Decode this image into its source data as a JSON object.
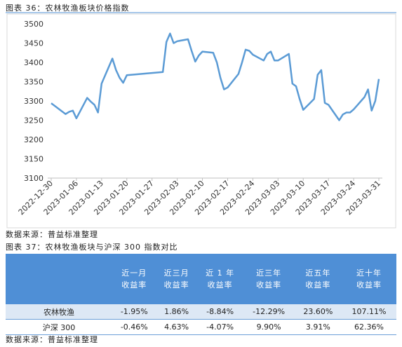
{
  "caption1": "图表 36：农林牧渔板块价格指数",
  "chart_data": {
    "type": "line",
    "x": [
      "2022-12-30",
      "2023-01-03",
      "2023-01-04",
      "2023-01-05",
      "2023-01-06",
      "2023-01-09",
      "2023-01-10",
      "2023-01-11",
      "2023-01-12",
      "2023-01-13",
      "2023-01-16",
      "2023-01-17",
      "2023-01-18",
      "2023-01-19",
      "2023-01-20",
      "2023-01-30",
      "2023-01-31",
      "2023-02-01",
      "2023-02-02",
      "2023-02-03",
      "2023-02-06",
      "2023-02-07",
      "2023-02-08",
      "2023-02-09",
      "2023-02-10",
      "2023-02-13",
      "2023-02-14",
      "2023-02-15",
      "2023-02-16",
      "2023-02-17",
      "2023-02-20",
      "2023-02-21",
      "2023-02-22",
      "2023-02-23",
      "2023-02-24",
      "2023-02-27",
      "2023-02-28",
      "2023-03-01",
      "2023-03-02",
      "2023-03-03",
      "2023-03-06",
      "2023-03-07",
      "2023-03-08",
      "2023-03-09",
      "2023-03-10",
      "2023-03-13",
      "2023-03-14",
      "2023-03-15",
      "2023-03-16",
      "2023-03-17",
      "2023-03-20",
      "2023-03-21",
      "2023-03-22",
      "2023-03-23",
      "2023-03-24",
      "2023-03-27",
      "2023-03-28",
      "2023-03-29",
      "2023-03-30",
      "2023-03-31"
    ],
    "series": [
      {
        "color": "#5b9bd5",
        "values": [
          3294,
          3266,
          3272,
          3275,
          3255,
          3308,
          3298,
          3290,
          3270,
          3345,
          3410,
          3380,
          3360,
          3347,
          3367,
          3375,
          3453,
          3475,
          3450,
          3455,
          3460,
          3430,
          3402,
          3418,
          3428,
          3425,
          3400,
          3360,
          3330,
          3335,
          3370,
          3400,
          3433,
          3430,
          3420,
          3405,
          3422,
          3428,
          3405,
          3405,
          3422,
          3345,
          3338,
          3305,
          3277,
          3305,
          3368,
          3380,
          3295,
          3290,
          3250,
          3265,
          3270,
          3270,
          3278,
          3310,
          3330,
          3275,
          3300,
          3357
        ]
      }
    ],
    "xlim": [
      "2022-12-30",
      "2023-03-31"
    ],
    "xticks": [
      "2022-12-30",
      "2023-01-06",
      "2023-01-13",
      "2023-01-20",
      "2023-01-27",
      "2023-02-03",
      "2023-02-10",
      "2023-02-17",
      "2023-02-24",
      "2023-03-03",
      "2023-03-10",
      "2023-03-17",
      "2023-03-24",
      "2023-03-31"
    ],
    "ylim": [
      3100,
      3500
    ],
    "yticks": [
      3100,
      3150,
      3200,
      3250,
      3300,
      3350,
      3400,
      3450,
      3500
    ],
    "grid": false
  },
  "source1": "数据来源：普益标准整理",
  "caption2": "图表 37：农林牧渔板块与沪深 300 指数对比",
  "table": {
    "header": [
      [
        "近一月",
        "收益率"
      ],
      [
        "近三月",
        "收益率"
      ],
      [
        "近 1 年",
        "收益率"
      ],
      [
        "近三年",
        "收益率"
      ],
      [
        "近五年",
        "收益率"
      ],
      [
        "近十年",
        "收益率"
      ]
    ],
    "rows": [
      [
        "农林牧渔",
        "-1.95%",
        "1.86%",
        "-8.84%",
        "-12.29%",
        "23.60%",
        "107.11%"
      ],
      [
        "沪深 300",
        "-0.46%",
        "4.63%",
        "-4.07%",
        "9.90%",
        "3.91%",
        "62.36%"
      ]
    ]
  },
  "source2": "数据来源：普益标准整理"
}
